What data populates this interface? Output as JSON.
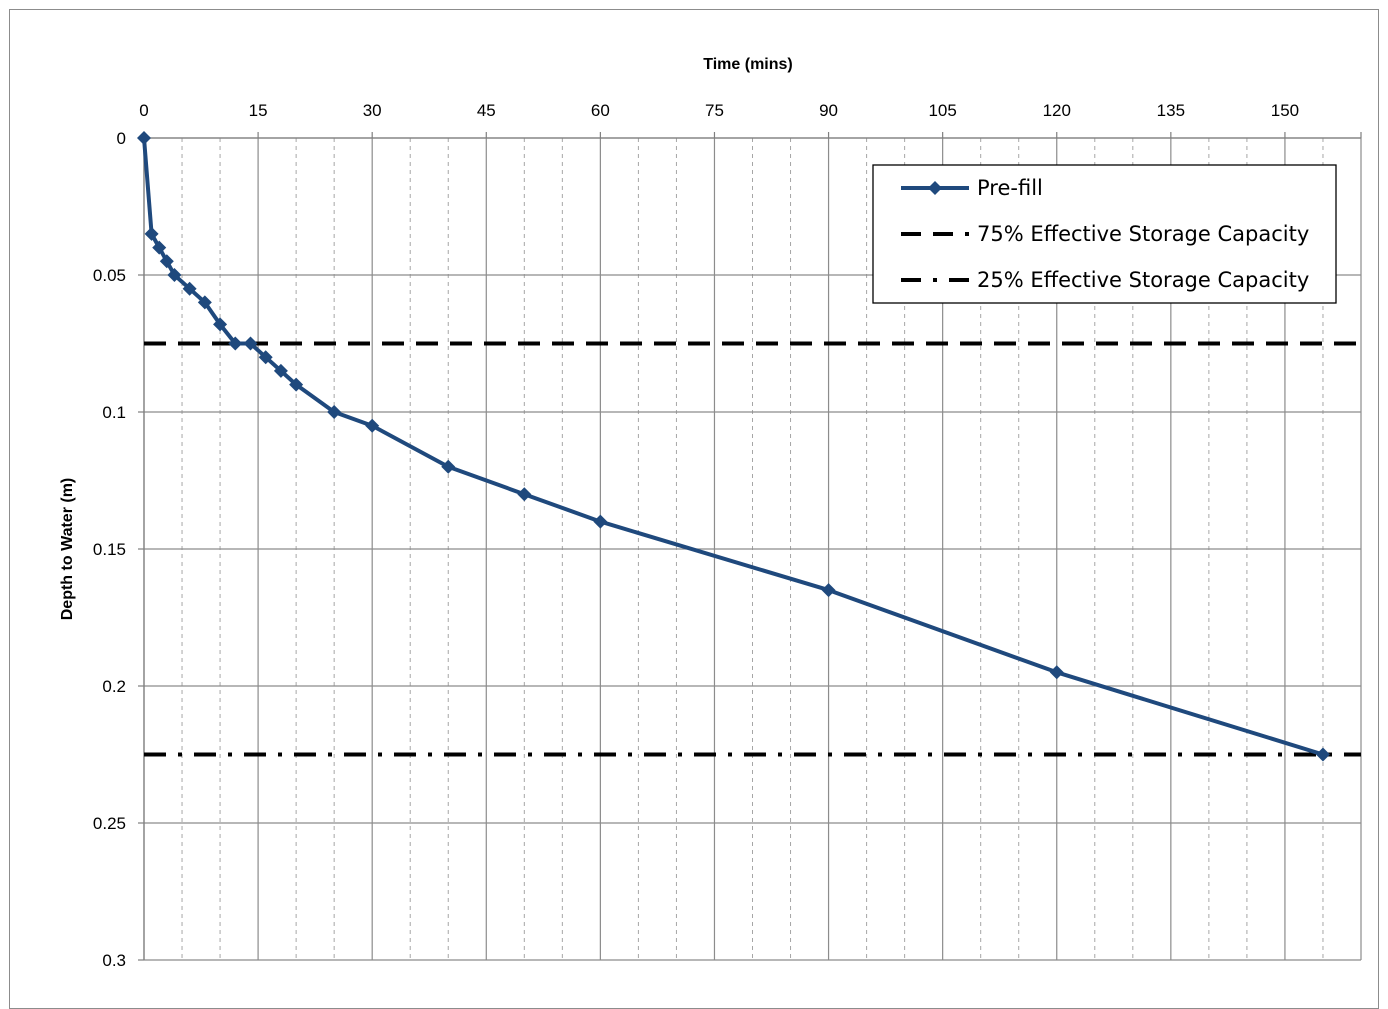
{
  "chart_data": {
    "type": "line",
    "xlabel": "Time (mins)",
    "ylabel": "Depth to Water (m)",
    "x_axis_position": "top",
    "y_axis_reversed": true,
    "xlim": [
      0,
      160
    ],
    "ylim": [
      0,
      0.3
    ],
    "x_ticks": [
      0,
      15,
      30,
      45,
      60,
      75,
      90,
      105,
      120,
      135,
      150
    ],
    "x_tick_labels": [
      "0",
      "15",
      "30",
      "45",
      "60",
      "75",
      "90",
      "105",
      "120",
      "135",
      "150"
    ],
    "x_minor_gridlines": [
      5,
      10,
      20,
      25,
      35,
      40,
      50,
      55,
      65,
      70,
      80,
      85,
      95,
      100,
      110,
      115,
      125,
      130,
      140,
      145,
      155
    ],
    "y_ticks": [
      0,
      0.05,
      0.1,
      0.15,
      0.2,
      0.25,
      0.3
    ],
    "y_tick_labels": [
      "0",
      "0.05",
      "0.1",
      "0.15",
      "0.2",
      "0.25",
      "0.3"
    ],
    "grid": true,
    "legend_position": "top-right",
    "series": [
      {
        "name": "Pre-fill",
        "style": "line-with-diamond-markers",
        "color": "#1f497d",
        "x": [
          0,
          1,
          2,
          3,
          4,
          6,
          8,
          10,
          12,
          14,
          16,
          18,
          20,
          25,
          30,
          40,
          50,
          60,
          90,
          120,
          155
        ],
        "y": [
          0,
          0.035,
          0.04,
          0.045,
          0.05,
          0.055,
          0.06,
          0.068,
          0.075,
          0.075,
          0.08,
          0.085,
          0.09,
          0.1,
          0.105,
          0.12,
          0.13,
          0.14,
          0.165,
          0.195,
          0.225
        ]
      },
      {
        "name": "75% Effective Storage Capacity",
        "style": "dashed",
        "color": "#000000",
        "y_constant": 0.075
      },
      {
        "name": "25% Effective Storage Capacity",
        "style": "dash-dot",
        "color": "#000000",
        "y_constant": 0.225
      }
    ]
  }
}
